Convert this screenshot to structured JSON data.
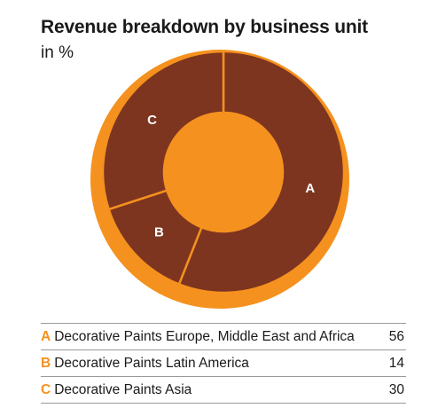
{
  "chart_data": {
    "type": "pie",
    "title": "Revenue breakdown by business unit",
    "subtitle": "in %",
    "slices": [
      {
        "letter": "A",
        "label": "Decorative Paints Europe, Middle East and Africa",
        "value": 56
      },
      {
        "letter": "B",
        "label": "Decorative Paints Latin America",
        "value": 14
      },
      {
        "letter": "C",
        "label": "Decorative Paints Asia",
        "value": 30
      }
    ]
  },
  "colors": {
    "slice_fill": "#7d3520",
    "outer_ring": "#f5911e",
    "separator": "#f5911e",
    "letter": "#ffffff",
    "legend_letter": "#f5911e",
    "rule": "#9a9a9a"
  }
}
